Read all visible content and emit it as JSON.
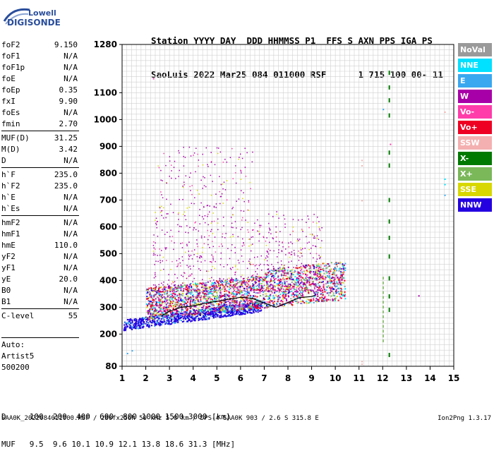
{
  "logo": {
    "line1": "Lowell",
    "line2": "DIGISONDE"
  },
  "header": {
    "line1": "Station YYYY DAY  DDD HHMMSS P1  FFS S AXN PPS IGA PS",
    "line2": "SaoLuis 2022 Mar25 084 011000 RSF      1 715 100 00- 11"
  },
  "params": [
    {
      "k": "foF2",
      "v": "9.150"
    },
    {
      "k": "foF1",
      "v": "N/A"
    },
    {
      "k": "foF1p",
      "v": "N/A"
    },
    {
      "k": "foE",
      "v": "N/A"
    },
    {
      "k": "foEp",
      "v": "0.35"
    },
    {
      "k": "fxI",
      "v": "9.90"
    },
    {
      "k": "foEs",
      "v": "N/A"
    },
    {
      "k": "fmin",
      "v": "2.70"
    },
    {
      "k": "MUF(D)",
      "v": "31.25",
      "sep": true
    },
    {
      "k": "M(D)",
      "v": "3.42"
    },
    {
      "k": "D",
      "v": "N/A"
    },
    {
      "k": "h`F",
      "v": "235.0",
      "sep": true
    },
    {
      "k": "h`F2",
      "v": "235.0"
    },
    {
      "k": "h`E",
      "v": "N/A"
    },
    {
      "k": "h`Es",
      "v": "N/A"
    },
    {
      "k": "hmF2",
      "v": "N/A",
      "sep": true
    },
    {
      "k": "hmF1",
      "v": "N/A"
    },
    {
      "k": "hmE",
      "v": "110.0"
    },
    {
      "k": "yF2",
      "v": "N/A"
    },
    {
      "k": "yF1",
      "v": "N/A"
    },
    {
      "k": "yE",
      "v": "20.0"
    },
    {
      "k": "B0",
      "v": "N/A"
    },
    {
      "k": "B1",
      "v": "N/A"
    },
    {
      "k": "C-level",
      "v": "55",
      "sep": true
    }
  ],
  "auto": {
    "l1": "Auto:",
    "l2": "Artist5",
    "l3": "500200"
  },
  "legend": [
    {
      "label": "NoVal",
      "color": "#9a9a9a"
    },
    {
      "label": "NNE",
      "color": "#00e0ff"
    },
    {
      "label": "E",
      "color": "#3aa8f0"
    },
    {
      "label": "W",
      "color": "#a800a8"
    },
    {
      "label": "Vo-",
      "color": "#ff3caa"
    },
    {
      "label": "Vo+",
      "color": "#ee0022"
    },
    {
      "label": "SSW",
      "color": "#f4b0b0"
    },
    {
      "label": "X-",
      "color": "#007a00"
    },
    {
      "label": "X+",
      "color": "#7ab85a"
    },
    {
      "label": "SSE",
      "color": "#d8d800"
    },
    {
      "label": "NNW",
      "color": "#2400e0"
    }
  ],
  "chart_data": {
    "type": "scatter",
    "x_ticks": [
      1,
      2,
      3,
      4,
      5,
      6,
      7,
      8,
      9,
      10,
      11,
      12,
      13,
      14,
      15
    ],
    "y_ticks": [
      80,
      200,
      300,
      400,
      500,
      600,
      700,
      800,
      900,
      1000,
      1100,
      1280
    ],
    "xlim": [
      1,
      15
    ],
    "ylim": [
      80,
      1280
    ],
    "grid": true,
    "trace": {
      "x": [
        2.7,
        3.0,
        3.5,
        4.0,
        4.5,
        5.0,
        5.5,
        6.0,
        6.5,
        7.0,
        7.5,
        8.0,
        8.5,
        9.0,
        9.15
      ],
      "y": [
        270,
        285,
        300,
        305,
        315,
        322,
        330,
        337,
        333,
        316,
        300,
        318,
        336,
        340,
        345
      ]
    }
  },
  "dtable": {
    "row1": "D     100  200  400  600  800 1000 1500 3000 [km]",
    "row2": "MUF   9.5  9.6 10.1 10.9 12.1 13.8 18.6 31.3 [MHz]"
  },
  "footer": "SAA0K_2022084011000.RSF / 280fx256h 50 kHz 5.0 km / DPS-4 SAA0K 903 / 2.6 S 315.8 E",
  "version": "Ion2Png 1.3.17"
}
